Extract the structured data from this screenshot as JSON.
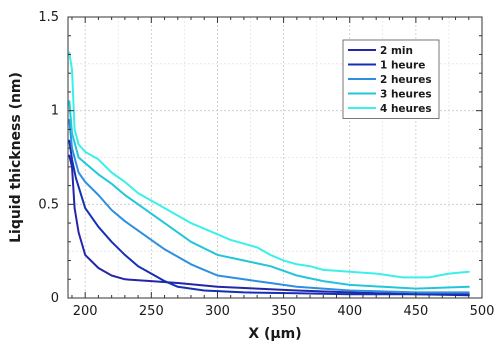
{
  "chart_data": {
    "type": "line",
    "xlabel": "X (µm)",
    "ylabel": "Liquid thickness (nm)",
    "xlim": [
      187,
      500
    ],
    "ylim": [
      0,
      1.5
    ],
    "x_ticks": [
      200,
      250,
      300,
      350,
      400,
      450,
      500
    ],
    "y_ticks": [
      0,
      0.5,
      1,
      1.5
    ],
    "x_tick_labels": [
      "200",
      "250",
      "300",
      "350",
      "400",
      "450",
      "500"
    ],
    "y_tick_labels": [
      "0",
      "0.5",
      "1",
      "1.5"
    ],
    "grid": true,
    "legend_position": "top-right",
    "series": [
      {
        "name": "2 min",
        "color": "#2525a8",
        "points": [
          [
            188,
            0.76
          ],
          [
            190,
            0.7
          ],
          [
            192,
            0.48
          ],
          [
            195,
            0.35
          ],
          [
            200,
            0.23
          ],
          [
            210,
            0.16
          ],
          [
            220,
            0.12
          ],
          [
            230,
            0.1
          ],
          [
            250,
            0.09
          ],
          [
            270,
            0.08
          ],
          [
            300,
            0.06
          ],
          [
            330,
            0.05
          ],
          [
            360,
            0.04
          ],
          [
            400,
            0.03
          ],
          [
            450,
            0.02
          ],
          [
            490,
            0.015
          ]
        ]
      },
      {
        "name": "1 heure",
        "color": "#1530b5",
        "points": [
          [
            188,
            0.84
          ],
          [
            190,
            0.74
          ],
          [
            193,
            0.64
          ],
          [
            200,
            0.48
          ],
          [
            210,
            0.38
          ],
          [
            220,
            0.3
          ],
          [
            230,
            0.23
          ],
          [
            240,
            0.17
          ],
          [
            250,
            0.13
          ],
          [
            260,
            0.09
          ],
          [
            270,
            0.06
          ],
          [
            290,
            0.04
          ],
          [
            320,
            0.03
          ],
          [
            360,
            0.025
          ],
          [
            400,
            0.02
          ],
          [
            450,
            0.02
          ],
          [
            490,
            0.02
          ]
        ]
      },
      {
        "name": "2 heures",
        "color": "#2e8fe0",
        "points": [
          [
            188,
            0.95
          ],
          [
            190,
            0.8
          ],
          [
            195,
            0.67
          ],
          [
            200,
            0.62
          ],
          [
            210,
            0.55
          ],
          [
            220,
            0.47
          ],
          [
            230,
            0.41
          ],
          [
            240,
            0.36
          ],
          [
            250,
            0.31
          ],
          [
            260,
            0.26
          ],
          [
            270,
            0.22
          ],
          [
            280,
            0.18
          ],
          [
            290,
            0.15
          ],
          [
            300,
            0.12
          ],
          [
            320,
            0.1
          ],
          [
            340,
            0.08
          ],
          [
            360,
            0.06
          ],
          [
            400,
            0.04
          ],
          [
            450,
            0.03
          ],
          [
            490,
            0.03
          ]
        ]
      },
      {
        "name": "3 heures",
        "color": "#23c6d8",
        "points": [
          [
            188,
            1.05
          ],
          [
            190,
            0.88
          ],
          [
            195,
            0.75
          ],
          [
            200,
            0.72
          ],
          [
            210,
            0.66
          ],
          [
            220,
            0.61
          ],
          [
            230,
            0.55
          ],
          [
            240,
            0.5
          ],
          [
            250,
            0.45
          ],
          [
            260,
            0.4
          ],
          [
            270,
            0.35
          ],
          [
            280,
            0.3
          ],
          [
            300,
            0.23
          ],
          [
            320,
            0.2
          ],
          [
            340,
            0.17
          ],
          [
            360,
            0.12
          ],
          [
            380,
            0.09
          ],
          [
            400,
            0.07
          ],
          [
            450,
            0.05
          ],
          [
            490,
            0.06
          ]
        ]
      },
      {
        "name": "4 heures",
        "color": "#3af0e8",
        "points": [
          [
            188,
            1.31
          ],
          [
            190,
            1.22
          ],
          [
            192,
            0.9
          ],
          [
            195,
            0.82
          ],
          [
            200,
            0.78
          ],
          [
            210,
            0.74
          ],
          [
            220,
            0.67
          ],
          [
            230,
            0.62
          ],
          [
            240,
            0.56
          ],
          [
            250,
            0.52
          ],
          [
            260,
            0.48
          ],
          [
            270,
            0.44
          ],
          [
            280,
            0.4
          ],
          [
            290,
            0.37
          ],
          [
            300,
            0.34
          ],
          [
            310,
            0.31
          ],
          [
            320,
            0.29
          ],
          [
            330,
            0.27
          ],
          [
            340,
            0.23
          ],
          [
            350,
            0.2
          ],
          [
            360,
            0.18
          ],
          [
            370,
            0.17
          ],
          [
            380,
            0.15
          ],
          [
            400,
            0.14
          ],
          [
            420,
            0.13
          ],
          [
            440,
            0.11
          ],
          [
            460,
            0.11
          ],
          [
            475,
            0.13
          ],
          [
            490,
            0.14
          ]
        ]
      }
    ]
  }
}
